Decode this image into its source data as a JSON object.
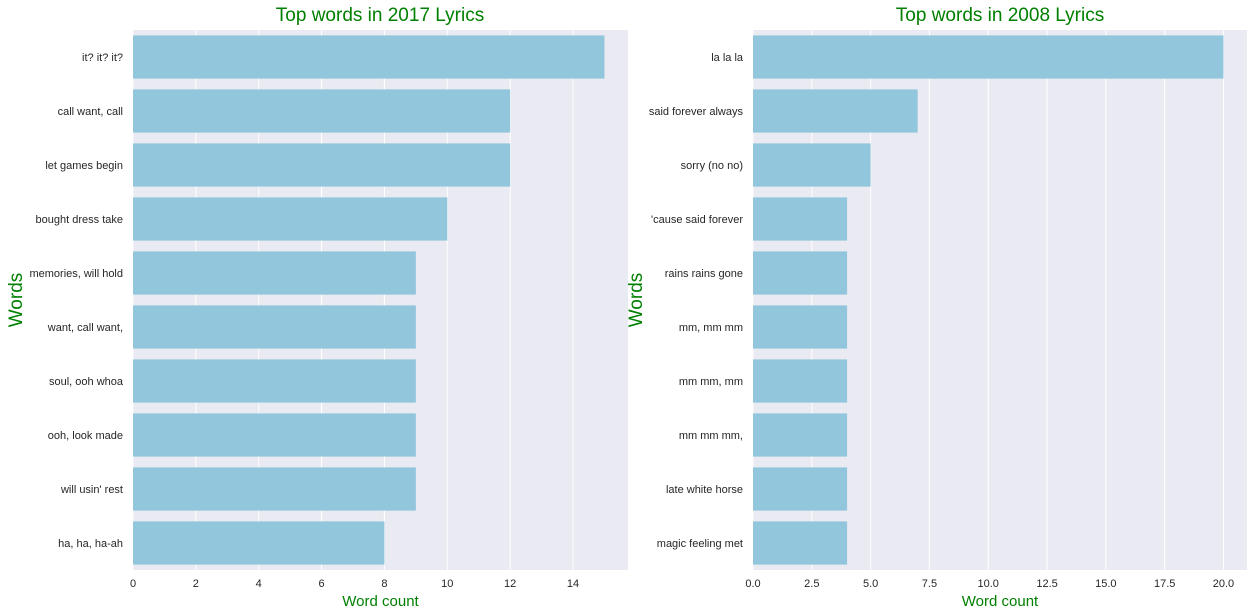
{
  "chart_data": [
    {
      "type": "bar",
      "orientation": "horizontal",
      "title": "Top words in 2017 Lyrics",
      "xlabel": "Word count",
      "ylabel": "Words",
      "categories": [
        "it? it? it?",
        "call want, call",
        "let games begin",
        "bought dress take",
        "memories, will hold",
        "want, call want,",
        "soul, ooh whoa",
        "ooh, look made",
        "will usin' rest",
        "ha, ha, ha-ah"
      ],
      "values": [
        15,
        12,
        12,
        10,
        9,
        9,
        9,
        9,
        9,
        8
      ],
      "xlim": [
        0,
        15.75
      ],
      "xticks": [
        0,
        2,
        4,
        6,
        8,
        10,
        12,
        14
      ],
      "tick_labels": [
        "0",
        "2",
        "4",
        "6",
        "8",
        "10",
        "12",
        "14"
      ],
      "grid": true
    },
    {
      "type": "bar",
      "orientation": "horizontal",
      "title": "Top words in 2008 Lyrics",
      "xlabel": "Word count",
      "ylabel": "Words",
      "categories": [
        "la la la",
        "said forever always",
        "sorry (no no)",
        "'cause said forever",
        "rains rains gone",
        "mm, mm mm",
        "mm mm, mm",
        "mm mm mm,",
        "late white horse",
        "magic feeling met"
      ],
      "values": [
        20,
        7,
        5,
        4,
        4,
        4,
        4,
        4,
        4,
        4
      ],
      "xlim": [
        0,
        21
      ],
      "xticks": [
        0,
        2.5,
        5,
        7.5,
        10,
        12.5,
        15,
        17.5,
        20
      ],
      "tick_labels": [
        "0.0",
        "2.5",
        "5.0",
        "7.5",
        "10.0",
        "12.5",
        "15.0",
        "17.5",
        "20.0"
      ],
      "grid": true
    }
  ],
  "colors": {
    "bar": "#92c6dc",
    "plot_background": "#eaeaf2",
    "grid": "#ffffff",
    "title": "#008000",
    "axis_label": "#008000",
    "tick_label": "#262626"
  }
}
